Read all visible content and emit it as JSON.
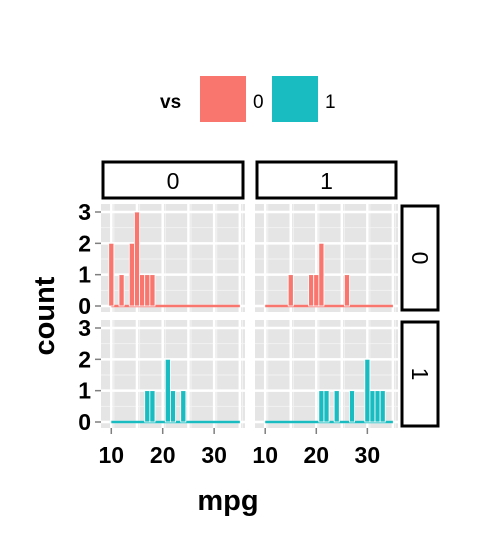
{
  "chart_data": {
    "type": "bar",
    "subtype": "histogram-facet-grid",
    "xlabel": "mpg",
    "ylabel": "count",
    "xlim": [
      8,
      36
    ],
    "ylim": [
      0,
      3
    ],
    "x_ticks": [
      10,
      20,
      30
    ],
    "y_ticks": [
      0,
      1,
      2,
      3
    ],
    "bin_width": 1,
    "grid": true,
    "legend": {
      "title": "vs",
      "position": "top",
      "entries": [
        {
          "label": "0",
          "color": "#f8766d"
        },
        {
          "label": "1",
          "color": "#19bdc1"
        }
      ]
    },
    "facet_columns": [
      "0",
      "1"
    ],
    "facet_rows": [
      "0",
      "1"
    ],
    "panels": [
      {
        "col": "0",
        "row": "0",
        "series": "0",
        "bins": [
          {
            "x": 10,
            "count": 2
          },
          {
            "x": 12,
            "count": 1
          },
          {
            "x": 14,
            "count": 2
          },
          {
            "x": 15,
            "count": 3
          },
          {
            "x": 16,
            "count": 1
          },
          {
            "x": 17,
            "count": 1
          },
          {
            "x": 18,
            "count": 1
          }
        ]
      },
      {
        "col": "1",
        "row": "0",
        "series": "0",
        "bins": [
          {
            "x": 15,
            "count": 1
          },
          {
            "x": 19,
            "count": 1
          },
          {
            "x": 20,
            "count": 1
          },
          {
            "x": 21,
            "count": 2
          },
          {
            "x": 26,
            "count": 1
          }
        ]
      },
      {
        "col": "0",
        "row": "1",
        "series": "1",
        "bins": [
          {
            "x": 17,
            "count": 1
          },
          {
            "x": 18,
            "count": 1
          },
          {
            "x": 21,
            "count": 2
          },
          {
            "x": 22,
            "count": 1
          },
          {
            "x": 24,
            "count": 1
          }
        ]
      },
      {
        "col": "1",
        "row": "1",
        "series": "1",
        "bins": [
          {
            "x": 21,
            "count": 1
          },
          {
            "x": 22,
            "count": 1
          },
          {
            "x": 24,
            "count": 1
          },
          {
            "x": 27,
            "count": 1
          },
          {
            "x": 30,
            "count": 2
          },
          {
            "x": 31,
            "count": 1
          },
          {
            "x": 32,
            "count": 1
          },
          {
            "x": 33,
            "count": 1
          }
        ]
      }
    ]
  }
}
